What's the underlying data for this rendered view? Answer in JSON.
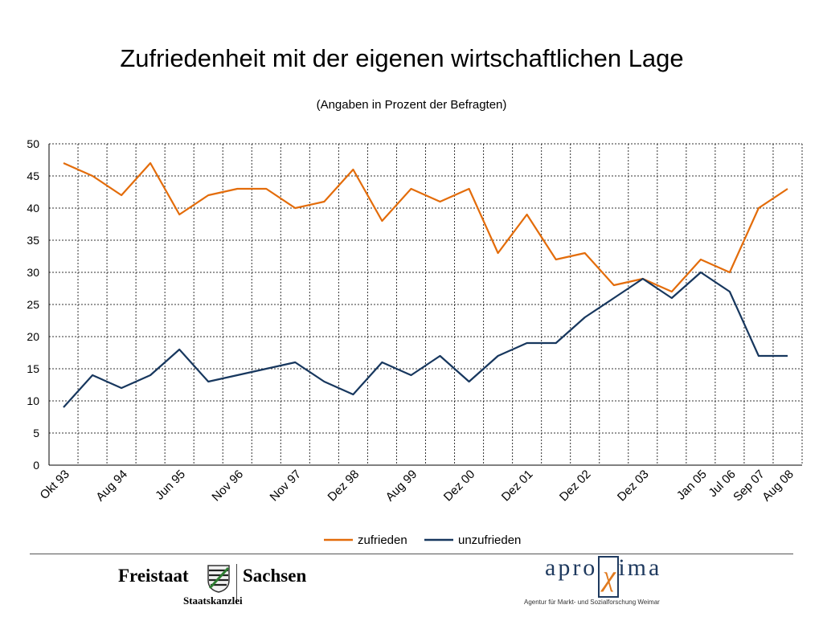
{
  "chart_data": {
    "type": "line",
    "title": "Zufriedenheit mit der eigenen wirtschaftlichen Lage",
    "subtitle": "(Angaben in Prozent der Befragten)",
    "xlabel": "",
    "ylabel": "",
    "ylim": [
      0,
      50
    ],
    "yticks": [
      0,
      5,
      10,
      15,
      20,
      25,
      30,
      35,
      40,
      45,
      50
    ],
    "grid": true,
    "legend_position": "bottom",
    "x_tick_labels": [
      "Okt 93",
      "Aug 94",
      "Jun 95",
      "Nov 96",
      "Nov 97",
      "Dez 98",
      "Aug 99",
      "Dez 00",
      "Dez 01",
      "Dez 02",
      "Dez 03",
      "Jan 05",
      "Jul 06",
      "Sep 07",
      "Aug 08"
    ],
    "series": [
      {
        "name": "zufrieden",
        "color": "#E36C0A",
        "values": [
          47,
          45,
          42,
          47,
          39,
          42,
          43,
          43,
          40,
          41,
          46,
          38,
          43,
          41,
          43,
          33,
          39,
          32,
          33,
          28,
          29,
          27,
          32,
          30,
          40,
          43
        ]
      },
      {
        "name": "unzufrieden",
        "color": "#17375E",
        "values": [
          9,
          14,
          12,
          14,
          18,
          13,
          14,
          15,
          16,
          13,
          11,
          16,
          14,
          17,
          13,
          17,
          19,
          19,
          23,
          26,
          29,
          26,
          30,
          27,
          17,
          17
        ]
      }
    ]
  },
  "footer": {
    "left_word1": "Freistaat",
    "left_word2": "Sachsen",
    "left_sub": "Staatskanzlei",
    "right_logo_pre": "apro",
    "right_logo_chi": "χ",
    "right_logo_post": "ima",
    "right_tagline": "Agentur für Markt- und Sozialforschung Weimar"
  }
}
